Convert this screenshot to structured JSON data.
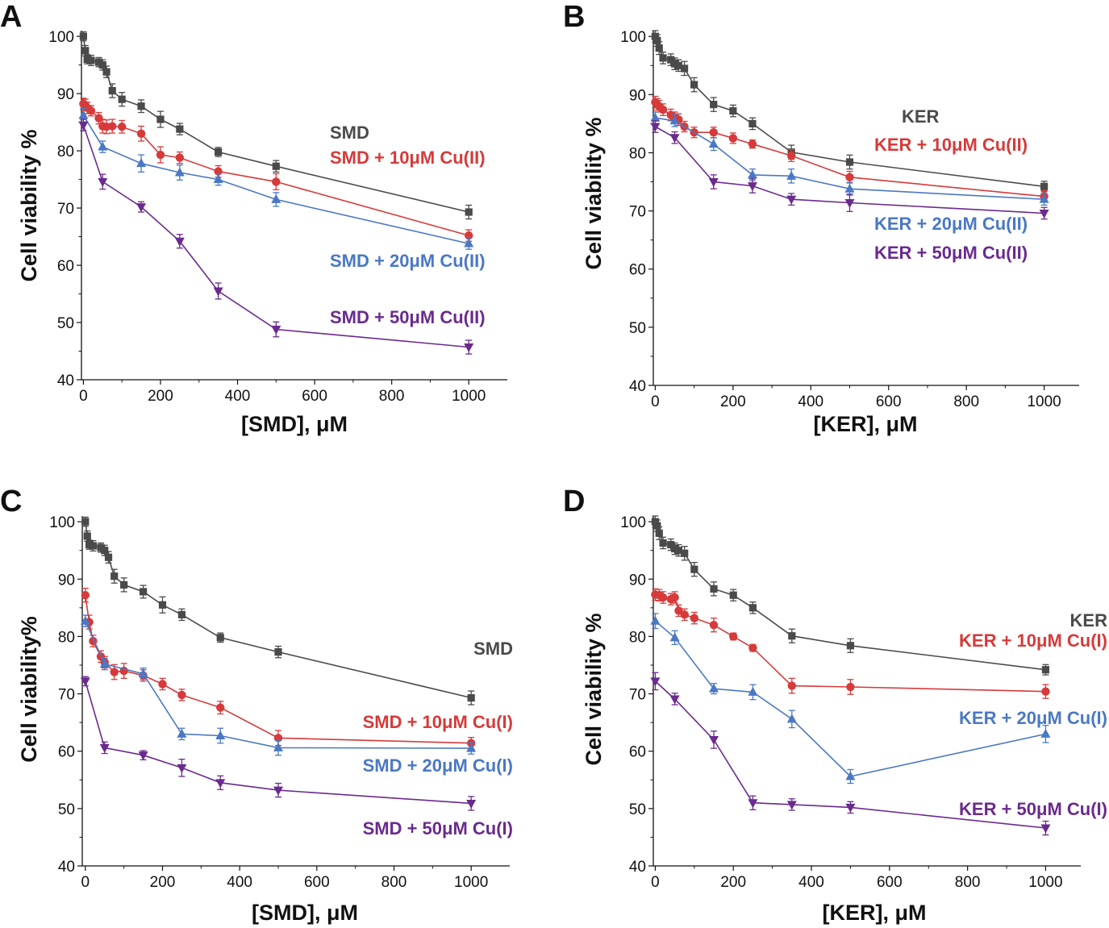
{
  "colors": {
    "gray": "#4a4a4a",
    "red": "#d63a3a",
    "blue": "#4a78c4",
    "purple": "#6a2a8e"
  },
  "chart_data": [
    {
      "panel": "A",
      "type": "line",
      "xlabel": "[SMD], μM",
      "ylabel": "Cell viability %",
      "xlim": [
        -5,
        1100
      ],
      "ylim": [
        40,
        101
      ],
      "xticks": [
        0,
        200,
        400,
        600,
        800,
        1000
      ],
      "yticks": [
        40,
        50,
        60,
        70,
        80,
        90,
        100
      ],
      "series": [
        {
          "name": "SMD",
          "label": "SMD",
          "color": "#4a4a4a",
          "marker": "square",
          "x": [
            0,
            5,
            10,
            20,
            40,
            50,
            60,
            75,
            100,
            150,
            200,
            250,
            350,
            500,
            1000
          ],
          "y": [
            100,
            97.5,
            96,
            95.8,
            95.5,
            95,
            93.8,
            90.5,
            89,
            87.8,
            85.5,
            83.8,
            79.8,
            77.3,
            69.3
          ],
          "err": [
            0.8,
            0.9,
            0.8,
            0.9,
            0.8,
            0.9,
            1.0,
            1.2,
            1.2,
            1.1,
            1.4,
            1.0,
            0.8,
            1.0,
            1.2
          ]
        },
        {
          "name": "SMD + 10μM Cu(II)",
          "label": "SMD + 10μM Cu(II)",
          "color": "#d63a3a",
          "marker": "circle",
          "x": [
            0,
            5,
            10,
            20,
            40,
            50,
            60,
            75,
            100,
            150,
            200,
            250,
            350,
            500,
            1000
          ],
          "y": [
            88.2,
            88,
            87.5,
            87,
            85.7,
            84.3,
            84.2,
            84.3,
            84.2,
            83,
            79.3,
            78.8,
            76.4,
            74.6,
            65.2
          ],
          "err": [
            1.0,
            1.0,
            1.0,
            0.9,
            1.0,
            1.2,
            1.2,
            1.2,
            1.1,
            1.3,
            1.4,
            1.0,
            1.0,
            1.4,
            1.0
          ]
        },
        {
          "name": "SMD + 20μM Cu(II)",
          "label": "SMD + 20μM Cu(II)",
          "color": "#4a78c4",
          "marker": "triangle-up",
          "x": [
            0,
            50,
            150,
            250,
            350,
            500,
            1000
          ],
          "y": [
            86.2,
            80.7,
            77.8,
            76.2,
            75,
            71.5,
            63.8
          ],
          "err": [
            1.2,
            1.0,
            1.5,
            1.3,
            1.0,
            1.2,
            1.0
          ]
        },
        {
          "name": "SMD + 50μM Cu(II)",
          "label": "SMD + 50μM Cu(II)",
          "color": "#6a2a8e",
          "marker": "triangle-down",
          "x": [
            0,
            50,
            150,
            250,
            350,
            500,
            1000
          ],
          "y": [
            84.5,
            74.6,
            70.2,
            64.2,
            55.5,
            48.8,
            45.7
          ],
          "err": [
            1.0,
            1.3,
            0.9,
            1.2,
            1.4,
            1.3,
            1.2
          ]
        }
      ]
    },
    {
      "panel": "B",
      "type": "line",
      "xlabel": "[KER], μM",
      "ylabel": "Cell viability %",
      "xlim": [
        -5,
        1090
      ],
      "ylim": [
        40,
        101
      ],
      "xticks": [
        0,
        200,
        400,
        600,
        800,
        1000
      ],
      "yticks": [
        40,
        50,
        60,
        70,
        80,
        90,
        100
      ],
      "series": [
        {
          "name": "KER",
          "label": "KER",
          "color": "#4a4a4a",
          "marker": "square",
          "x": [
            0,
            5,
            10,
            20,
            40,
            50,
            60,
            75,
            100,
            150,
            200,
            250,
            350,
            500,
            1000
          ],
          "y": [
            100,
            99.3,
            98,
            96.3,
            96,
            95.3,
            95,
            94.5,
            91.7,
            88.3,
            87.2,
            85,
            80.1,
            78.4,
            74.2
          ],
          "err": [
            1.0,
            1.0,
            1.1,
            1.0,
            1.0,
            1.0,
            1.0,
            1.2,
            1.2,
            1.2,
            1.0,
            1.0,
            1.2,
            1.2,
            0.9
          ]
        },
        {
          "name": "KER + 10μM Cu(II)",
          "label": "KER + 10μM Cu(II)",
          "color": "#d63a3a",
          "marker": "circle",
          "x": [
            0,
            5,
            10,
            20,
            40,
            50,
            60,
            75,
            100,
            150,
            200,
            250,
            350,
            500,
            1000
          ],
          "y": [
            88.7,
            88.3,
            88,
            87.4,
            86.5,
            86,
            85.7,
            84.5,
            83.5,
            83.5,
            82.5,
            81.5,
            79.5,
            75.8,
            72.5
          ],
          "err": [
            1.0,
            1.0,
            1.0,
            1.0,
            1.0,
            1.0,
            1.0,
            0.9,
            0.9,
            0.9,
            0.9,
            0.7,
            1.0,
            1.0,
            1.0
          ]
        },
        {
          "name": "KER + 20μM Cu(II)",
          "label": "KER + 20μM Cu(II)",
          "color": "#4a78c4",
          "marker": "triangle-up",
          "x": [
            0,
            50,
            150,
            250,
            350,
            500,
            1000
          ],
          "y": [
            86,
            85.5,
            81.5,
            76.2,
            76,
            73.8,
            72
          ],
          "err": [
            1.0,
            1.0,
            1.1,
            1.0,
            1.2,
            1.1,
            1.0
          ]
        },
        {
          "name": "KER + 50μM Cu(II)",
          "label": "KER + 50μM Cu(II)",
          "color": "#6a2a8e",
          "marker": "triangle-down",
          "x": [
            0,
            50,
            150,
            250,
            350,
            500,
            1000
          ],
          "y": [
            84.5,
            82.6,
            75,
            74.3,
            72,
            71.4,
            69.6
          ],
          "err": [
            1.0,
            1.0,
            1.2,
            1.2,
            1.0,
            1.5,
            1.0
          ]
        }
      ]
    },
    {
      "panel": "C",
      "type": "line",
      "xlabel": "[SMD], μM",
      "ylabel": "Cell viability%",
      "xlim": [
        -8,
        1100
      ],
      "ylim": [
        40,
        101
      ],
      "xticks": [
        0,
        200,
        400,
        600,
        800,
        1000
      ],
      "yticks": [
        40,
        50,
        60,
        70,
        80,
        90,
        100
      ],
      "series": [
        {
          "name": "SMD",
          "label": "SMD",
          "color": "#4a4a4a",
          "marker": "square",
          "x": [
            0,
            5,
            10,
            20,
            40,
            50,
            60,
            75,
            100,
            150,
            200,
            250,
            350,
            500,
            1000
          ],
          "y": [
            100,
            97.5,
            96,
            95.8,
            95.5,
            95,
            93.8,
            90.5,
            89,
            87.8,
            85.5,
            83.8,
            79.8,
            77.3,
            69.3
          ],
          "err": [
            0.8,
            0.9,
            0.8,
            0.9,
            0.8,
            0.9,
            1.0,
            1.2,
            1.2,
            1.1,
            1.4,
            1.0,
            0.8,
            1.0,
            1.2
          ]
        },
        {
          "name": "SMD + 10μM Cu(I)",
          "label": "SMD + 10μM Cu(I)",
          "color": "#d63a3a",
          "marker": "circle",
          "x": [
            0,
            10,
            20,
            40,
            50,
            75,
            100,
            150,
            200,
            250,
            350,
            500,
            1000
          ],
          "y": [
            87.2,
            82.5,
            79.2,
            76.5,
            75.5,
            73.8,
            74,
            73.2,
            71.7,
            69.8,
            67.6,
            62.3,
            61.4
          ],
          "err": [
            1.2,
            1.2,
            1.0,
            1.0,
            1.0,
            1.3,
            1.3,
            1.0,
            1.0,
            1.0,
            1.1,
            1.3,
            1.0
          ]
        },
        {
          "name": "SMD + 20μM Cu(I)",
          "label": "SMD + 20μM Cu(I)",
          "color": "#4a78c4",
          "marker": "triangle-up",
          "x": [
            0,
            50,
            150,
            250,
            350,
            500,
            1000
          ],
          "y": [
            82.7,
            75.2,
            73.5,
            63,
            62.7,
            60.6,
            60.5
          ],
          "err": [
            1.0,
            1.0,
            1.0,
            1.0,
            1.3,
            1.3,
            1.0
          ]
        },
        {
          "name": "SMD + 50μM Cu(I)",
          "label": "SMD + 50μM Cu(I)",
          "color": "#6a2a8e",
          "marker": "triangle-down",
          "x": [
            0,
            50,
            150,
            250,
            350,
            500,
            1000
          ],
          "y": [
            72.2,
            60.6,
            59.3,
            57.1,
            54.5,
            53.2,
            50.9
          ],
          "err": [
            0.8,
            1.0,
            0.8,
            1.5,
            1.2,
            1.2,
            1.2
          ]
        }
      ]
    },
    {
      "panel": "D",
      "type": "line",
      "xlabel": "[KER], μM",
      "ylabel": "Cell viability %",
      "xlim": [
        -5,
        1090
      ],
      "ylim": [
        40,
        101
      ],
      "xticks": [
        0,
        200,
        400,
        600,
        800,
        1000
      ],
      "yticks": [
        40,
        50,
        60,
        70,
        80,
        90,
        100
      ],
      "series": [
        {
          "name": "KER",
          "label": "KER",
          "color": "#4a4a4a",
          "marker": "square",
          "x": [
            0,
            5,
            10,
            20,
            40,
            50,
            60,
            75,
            100,
            150,
            200,
            250,
            350,
            500,
            1000
          ],
          "y": [
            100,
            99.3,
            98,
            96.3,
            96,
            95.3,
            95,
            94.5,
            91.7,
            88.3,
            87.2,
            85,
            80.1,
            78.4,
            74.2
          ],
          "err": [
            1.0,
            1.0,
            1.1,
            1.0,
            1.0,
            1.0,
            1.0,
            1.2,
            1.2,
            1.2,
            1.0,
            1.0,
            1.2,
            1.2,
            0.9
          ]
        },
        {
          "name": "KER + 10μM Cu(I)",
          "label": "KER + 10μM Cu(I)",
          "color": "#d63a3a",
          "marker": "circle",
          "x": [
            0,
            10,
            20,
            40,
            50,
            60,
            75,
            100,
            150,
            200,
            250,
            350,
            500,
            1000
          ],
          "y": [
            87.3,
            87.2,
            86.8,
            86.5,
            86.8,
            84.5,
            83.8,
            83.2,
            82,
            80,
            78,
            71.4,
            71.2,
            70.4
          ],
          "err": [
            1.0,
            1.0,
            1.0,
            1.0,
            1.0,
            1.0,
            1.0,
            1.0,
            1.2,
            0.6,
            0.6,
            1.3,
            1.3,
            1.2
          ]
        },
        {
          "name": "KER + 20μM Cu(I)",
          "label": "KER + 20μM Cu(I)",
          "color": "#4a78c4",
          "marker": "triangle-up",
          "x": [
            0,
            50,
            150,
            250,
            350,
            500,
            1000
          ],
          "y": [
            82.7,
            79.8,
            70.9,
            70.3,
            65.6,
            55.6,
            63
          ],
          "err": [
            1.3,
            1.2,
            0.9,
            1.3,
            1.5,
            1.2,
            1.5
          ]
        },
        {
          "name": "KER + 50μM Cu(I)",
          "label": "KER + 50μM Cu(I)",
          "color": "#6a2a8e",
          "marker": "triangle-down",
          "x": [
            0,
            50,
            150,
            250,
            350,
            500,
            1000
          ],
          "y": [
            72.2,
            69.1,
            62,
            51,
            50.7,
            50.2,
            46.6
          ],
          "err": [
            1.5,
            1.0,
            1.5,
            1.2,
            1.0,
            1.0,
            1.2
          ]
        }
      ]
    }
  ]
}
